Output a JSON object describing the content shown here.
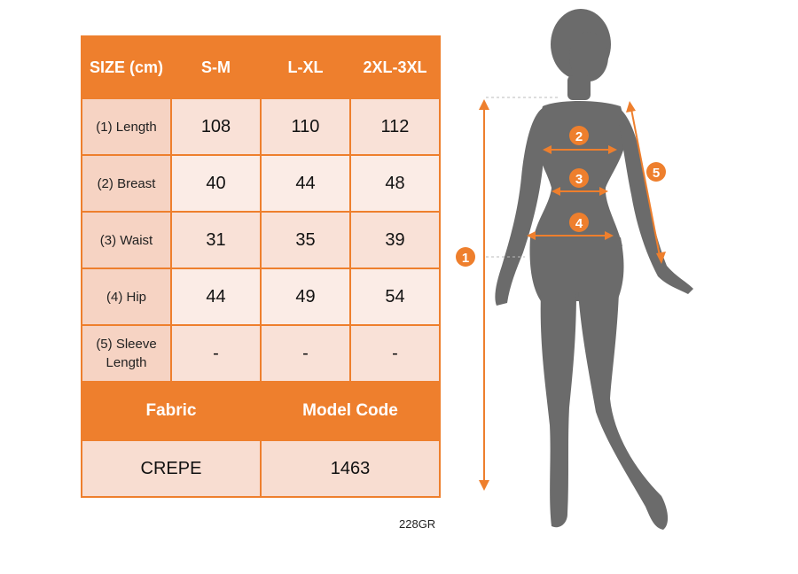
{
  "table": {
    "header": {
      "size": "SIZE (cm)",
      "cols": [
        "S-M",
        "L-XL",
        "2XL-3XL"
      ]
    },
    "rows": [
      {
        "label": "(1) Length",
        "values": [
          "108",
          "110",
          "112"
        ]
      },
      {
        "label": "(2) Breast",
        "values": [
          "40",
          "44",
          "48"
        ]
      },
      {
        "label": "(3) Waist",
        "values": [
          "31",
          "35",
          "39"
        ]
      },
      {
        "label": "(4) Hip",
        "values": [
          "44",
          "49",
          "54"
        ]
      },
      {
        "label": "(5) Sleeve Length",
        "values": [
          "-",
          "-",
          "-"
        ]
      }
    ],
    "fabric_label": "Fabric",
    "model_code_label": "Model Code",
    "fabric_value": "CREPE",
    "model_code_value": "1463"
  },
  "product_code": "228GR",
  "markers": [
    "1",
    "2",
    "3",
    "4",
    "5"
  ],
  "colors": {
    "accent": "#ee7f2d",
    "label_bg": "#f6d3c3",
    "silhouette": "#6b6b6b"
  }
}
